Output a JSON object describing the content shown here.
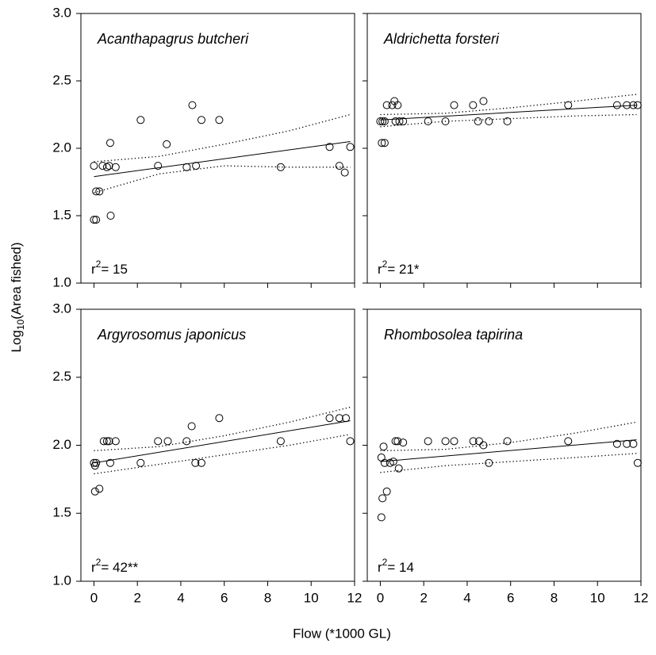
{
  "y_label": {
    "main": "Log",
    "sub": "10",
    "rest": "(Area fished)"
  },
  "x_label": "Flow (*1000 GL)",
  "chart_data": [
    {
      "type": "scatter",
      "title": "Acanthapagrus butcheri",
      "annotation": {
        "base": "r",
        "sup": "2",
        "text": "= 15"
      },
      "x": [
        0,
        0,
        0.1,
        0.1,
        0.25,
        0.4,
        0.6,
        0.7,
        0.75,
        0.77,
        1.0,
        2.15,
        2.95,
        3.35,
        4.27,
        4.53,
        4.7,
        4.95,
        5.77,
        8.6,
        10.85,
        11.3,
        11.55,
        11.8
      ],
      "y": [
        1.87,
        1.47,
        1.47,
        1.68,
        1.68,
        1.87,
        1.86,
        1.87,
        2.04,
        1.5,
        1.86,
        2.21,
        1.87,
        2.03,
        1.86,
        2.32,
        1.87,
        2.21,
        2.21,
        1.86,
        2.01,
        1.87,
        1.82,
        2.01
      ],
      "fit": {
        "x": [
          0,
          11.8
        ],
        "y": [
          1.79,
          2.05
        ]
      },
      "upper": {
        "x": [
          0,
          3,
          6,
          9,
          11.8
        ],
        "y": [
          1.9,
          1.94,
          2.03,
          2.13,
          2.25
        ]
      },
      "lower": {
        "x": [
          0,
          3,
          6,
          9,
          11.8
        ],
        "y": [
          1.67,
          1.81,
          1.87,
          1.86,
          1.86
        ]
      },
      "xlim": [
        -0.6,
        12
      ],
      "ylim": [
        1,
        3
      ],
      "xticks": [
        0,
        2,
        4,
        6,
        8,
        10,
        12
      ],
      "yticks": [
        {
          "value": 1,
          "label": "1.0"
        },
        {
          "value": 1.5,
          "label": "1.5"
        },
        {
          "value": 2,
          "label": "2.0"
        },
        {
          "value": 2.5,
          "label": "2.5"
        },
        {
          "value": 3,
          "label": "3.0"
        }
      ]
    },
    {
      "type": "scatter",
      "title": "Aldrichetta forsteri",
      "annotation": {
        "base": "r",
        "sup": "2",
        "text": "= 21*"
      },
      "x": [
        0,
        0.1,
        0.2,
        0.07,
        0.2,
        0.3,
        0.55,
        0.65,
        0.7,
        0.8,
        0.88,
        1.05,
        2.2,
        3.0,
        3.4,
        4.27,
        4.5,
        4.75,
        5.0,
        5.85,
        8.65,
        10.9,
        11.35,
        11.65,
        11.85
      ],
      "y": [
        2.2,
        2.2,
        2.2,
        2.04,
        2.04,
        2.32,
        2.32,
        2.35,
        2.2,
        2.32,
        2.2,
        2.2,
        2.2,
        2.2,
        2.32,
        2.32,
        2.2,
        2.35,
        2.2,
        2.2,
        2.32,
        2.32,
        2.32,
        2.32,
        2.32
      ],
      "fit": {
        "x": [
          0,
          11.8
        ],
        "y": [
          2.21,
          2.32
        ]
      },
      "upper": {
        "x": [
          0,
          3,
          6,
          9,
          11.8
        ],
        "y": [
          2.25,
          2.26,
          2.3,
          2.35,
          2.4
        ]
      },
      "lower": {
        "x": [
          0,
          3,
          6,
          9,
          11.8
        ],
        "y": [
          2.16,
          2.2,
          2.22,
          2.24,
          2.25
        ]
      },
      "xlim": [
        -0.6,
        12
      ],
      "ylim": [
        1,
        3
      ],
      "xticks": [
        0,
        2,
        4,
        6,
        8,
        10,
        12
      ],
      "yticks": [
        {
          "value": 1,
          "label": "1.0"
        },
        {
          "value": 1.5,
          "label": "1.5"
        },
        {
          "value": 2,
          "label": "2.0"
        },
        {
          "value": 2.5,
          "label": "2.5"
        },
        {
          "value": 3,
          "label": "3.0"
        }
      ]
    },
    {
      "type": "scatter",
      "title": "Argyrosomus japonicus",
      "annotation": {
        "base": "r",
        "sup": "2",
        "text": "= 42**"
      },
      "x": [
        0,
        0.1,
        0.05,
        0.05,
        0.25,
        0.45,
        0.6,
        0.7,
        0.75,
        1.0,
        2.15,
        2.95,
        3.4,
        4.27,
        4.5,
        4.67,
        4.95,
        5.77,
        8.6,
        10.85,
        11.3,
        11.6,
        11.8
      ],
      "y": [
        1.87,
        1.87,
        1.85,
        1.66,
        1.68,
        2.03,
        2.03,
        2.03,
        1.87,
        2.03,
        1.87,
        2.03,
        2.03,
        2.03,
        2.14,
        1.87,
        1.87,
        2.2,
        2.03,
        2.2,
        2.2,
        2.2,
        2.03
      ],
      "fit": {
        "x": [
          0,
          11.8
        ],
        "y": [
          1.87,
          2.18
        ]
      },
      "upper": {
        "x": [
          0,
          3,
          6,
          9,
          11.8
        ],
        "y": [
          1.96,
          1.99,
          2.07,
          2.17,
          2.28
        ]
      },
      "lower": {
        "x": [
          0,
          3,
          6,
          9,
          11.8
        ],
        "y": [
          1.79,
          1.86,
          1.93,
          2.0,
          2.08
        ]
      },
      "xlim": [
        -0.6,
        12
      ],
      "ylim": [
        1,
        3
      ],
      "xticks": [
        0,
        2,
        4,
        6,
        8,
        10,
        12
      ],
      "yticks": [
        {
          "value": 1,
          "label": "1.0"
        },
        {
          "value": 1.5,
          "label": "1.5"
        },
        {
          "value": 2,
          "label": "2.0"
        },
        {
          "value": 2.5,
          "label": "2.5"
        },
        {
          "value": 3,
          "label": "3.0"
        }
      ]
    },
    {
      "type": "scatter",
      "title": "Rhombosolea tapirina",
      "annotation": {
        "base": "r",
        "sup": "2",
        "text": "= 14"
      },
      "x": [
        0.05,
        0.15,
        0.1,
        0.05,
        0.2,
        0.3,
        0.45,
        0.6,
        0.7,
        0.8,
        0.85,
        1.05,
        2.2,
        3.0,
        3.4,
        4.28,
        4.55,
        4.75,
        5.0,
        5.85,
        8.65,
        10.9,
        11.35,
        11.65,
        11.85
      ],
      "y": [
        1.91,
        1.99,
        1.61,
        1.47,
        1.87,
        1.66,
        1.87,
        1.88,
        2.03,
        2.03,
        1.83,
        2.02,
        2.03,
        2.03,
        2.03,
        2.03,
        2.03,
        2.0,
        1.87,
        2.03,
        2.03,
        2.01,
        2.01,
        2.01,
        1.87
      ],
      "fit": {
        "x": [
          0,
          11.8
        ],
        "y": [
          1.88,
          2.04
        ]
      },
      "upper": {
        "x": [
          0,
          3,
          6,
          9,
          11.8
        ],
        "y": [
          1.96,
          1.97,
          2.02,
          2.09,
          2.17
        ]
      },
      "lower": {
        "x": [
          0,
          3,
          6,
          9,
          11.8
        ],
        "y": [
          1.8,
          1.85,
          1.88,
          1.91,
          1.94
        ]
      },
      "xlim": [
        -0.6,
        12
      ],
      "ylim": [
        1,
        3
      ],
      "xticks": [
        0,
        2,
        4,
        6,
        8,
        10,
        12
      ],
      "yticks": [
        {
          "value": 1,
          "label": "1.0"
        },
        {
          "value": 1.5,
          "label": "1.5"
        },
        {
          "value": 2,
          "label": "2.0"
        },
        {
          "value": 2.5,
          "label": "2.5"
        },
        {
          "value": 3,
          "label": "3.0"
        }
      ]
    }
  ]
}
